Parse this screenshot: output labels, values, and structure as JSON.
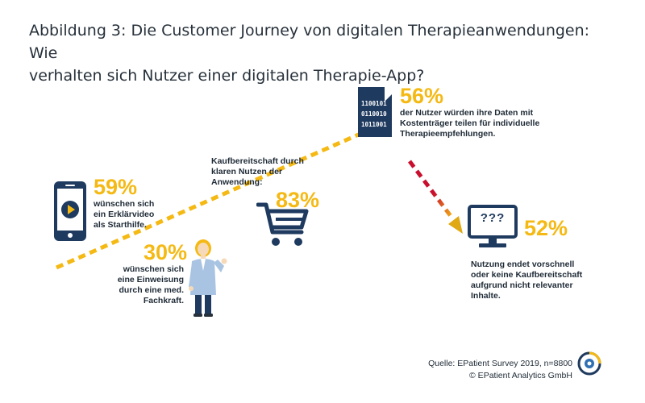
{
  "title": {
    "line1": "Abbildung 3: Die Customer Journey von digitalen Therapieanwendungen: Wie",
    "line2": "verhalten sich Nutzer einer digitalen Therapie-App?"
  },
  "stages": {
    "video": {
      "percent": "59%",
      "lines": [
        "wünschen sich",
        "ein Erklärvideo",
        "als Starthilfe."
      ],
      "icon": "smartphone-play-icon"
    },
    "fachkraft": {
      "percent": "30%",
      "lines": [
        "wünschen sich",
        "eine Einweisung",
        "durch eine med.",
        "Fachkraft."
      ],
      "icon": "doctor-figure-icon"
    },
    "kauf": {
      "heading_lines": [
        "Kaufbereitschaft durch",
        "klaren Nutzen der",
        "Anwendung:"
      ],
      "percent": "83%",
      "icon": "shopping-cart-icon"
    },
    "daten": {
      "percent": "56%",
      "lines": [
        "der Nutzer würden ihre Daten mit",
        "Kostenträger teilen für individuelle",
        "Therapieempfehlungen."
      ],
      "icon": "binary-document-icon",
      "binary": [
        "1100101",
        "0110010",
        "1011001"
      ]
    },
    "abbruch": {
      "percent": "52%",
      "lines": [
        "Nutzung endet vorschnell",
        "oder keine Kaufbereitschaft",
        "aufgrund nicht relevanter",
        "Inhalte."
      ],
      "icon": "monitor-question-icon",
      "screen_text": "???"
    }
  },
  "source": {
    "line1": "Quelle: EPatient Survey 2019, n=8800",
    "line2": "© EPatient Analytics GmbH"
  },
  "colors": {
    "accent_yellow": "#f5b914",
    "navy": "#1f3a5f",
    "red": "#c8102e",
    "text": "#1e2a36"
  }
}
